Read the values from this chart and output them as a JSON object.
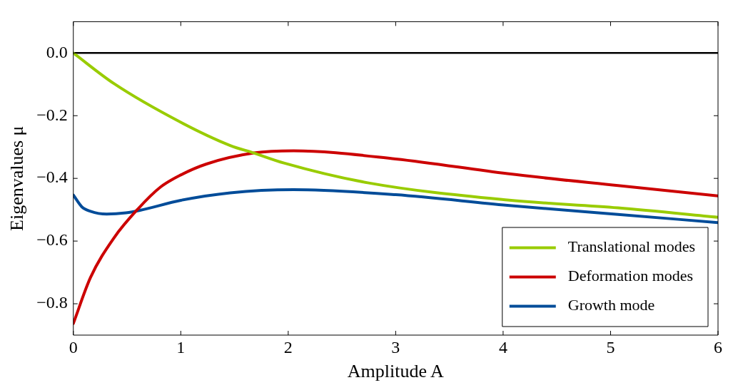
{
  "chart_data": {
    "type": "line",
    "xlabel": "Amplitude A",
    "ylabel": "Eigenvalues μ",
    "xlim": [
      0,
      6
    ],
    "xticks": [
      0,
      1,
      2,
      3,
      4,
      5,
      6
    ],
    "ylim": [
      -0.9,
      0.1
    ],
    "yticks": [
      {
        "value": 0,
        "label": "0.0"
      },
      {
        "value": -0.2,
        "label": "−0.2"
      },
      {
        "value": -0.4,
        "label": "−0.4"
      },
      {
        "value": -0.6,
        "label": "−0.6"
      },
      {
        "value": -0.8,
        "label": "−0.8"
      }
    ],
    "grid": false,
    "legend": "bottom right",
    "marker": "none",
    "line_style": "solid",
    "ref_lines": [
      {
        "axis": "y",
        "value": 0,
        "label": null,
        "color": "#000000"
      }
    ],
    "series": [
      {
        "name": "Translational modes",
        "color": "#99cc00",
        "x": [
          0,
          0.38,
          1,
          1.46,
          1.68,
          1.96,
          2.74,
          4.04,
          5.07,
          6
        ],
        "values": [
          0,
          -0.098,
          -0.221,
          -0.295,
          -0.319,
          -0.351,
          -0.414,
          -0.469,
          -0.494,
          -0.524
        ]
      },
      {
        "name": "Deformation modes",
        "color": "#cc0000",
        "x": [
          0,
          0.16,
          0.38,
          0.6,
          0.81,
          1,
          1.24,
          1.68,
          2.05,
          3,
          4.04,
          5.07,
          6
        ],
        "values": [
          -0.863,
          -0.716,
          -0.589,
          -0.498,
          -0.428,
          -0.389,
          -0.354,
          -0.319,
          -0.312,
          -0.338,
          -0.385,
          -0.423,
          -0.456
        ]
      },
      {
        "name": "Growth mode",
        "color": "#004c99",
        "x": [
          0,
          0.08,
          0.16,
          0.31,
          0.49,
          0.62,
          1,
          1.46,
          2.05,
          3,
          4.04,
          5.07,
          6
        ],
        "values": [
          -0.453,
          -0.491,
          -0.505,
          -0.514,
          -0.51,
          -0.502,
          -0.47,
          -0.446,
          -0.436,
          -0.452,
          -0.486,
          -0.515,
          -0.541
        ]
      }
    ]
  }
}
